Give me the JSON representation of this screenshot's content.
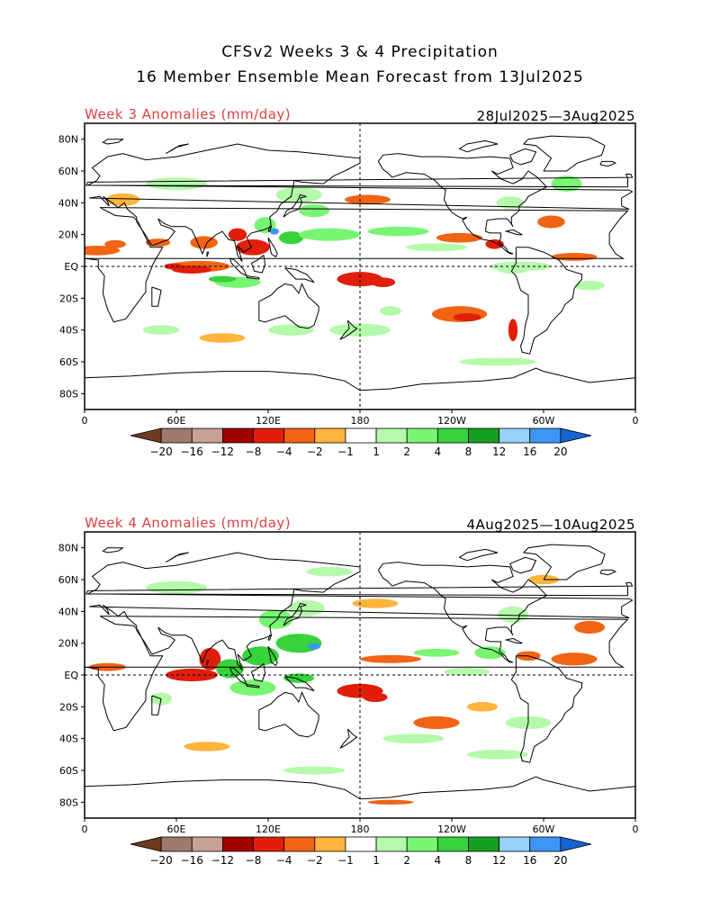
{
  "title_line1": "CFSv2 Weeks 3 & 4 Precipitation",
  "title_line2": "16 Member Ensemble Mean Forecast from 13Jul2025",
  "panels": [
    {
      "id": "week3",
      "label": "Week 3 Anomalies (mm/day)",
      "dates": "28Jul2025—3Aug2025"
    },
    {
      "id": "week4",
      "label": "Week 4 Anomalies (mm/day)",
      "dates": "4Aug2025—10Aug2025"
    }
  ],
  "lat_ticks": [
    "80N",
    "60N",
    "40N",
    "20N",
    "EQ",
    "20S",
    "40S",
    "60S",
    "80S"
  ],
  "lon_ticks": [
    "0",
    "60E",
    "120E",
    "180",
    "120W",
    "60W",
    "0"
  ],
  "colorbar": {
    "labels": [
      "−20",
      "−16",
      "−12",
      "−8",
      "−4",
      "−2",
      "−1",
      "1",
      "2",
      "4",
      "8",
      "12",
      "16",
      "20"
    ],
    "colors": [
      "#6e3c1e",
      "#a0786e",
      "#c8a096",
      "#a00000",
      "#e01e0a",
      "#f06414",
      "#ffb43c",
      "#ffffff",
      "#b4faaa",
      "#78f573",
      "#37d23c",
      "#14a01e",
      "#96d2fa",
      "#3c96f5",
      "#1464d2"
    ]
  },
  "map_colors": {
    "dry_strong": "#e01e0a",
    "dry_mid": "#f06414",
    "dry_light": "#ffb43c",
    "wet_light": "#b4faaa",
    "wet_mid": "#78f573",
    "wet_strong": "#37d23c",
    "wet_dark": "#14a01e",
    "wet_blue": "#3c96f5"
  }
}
